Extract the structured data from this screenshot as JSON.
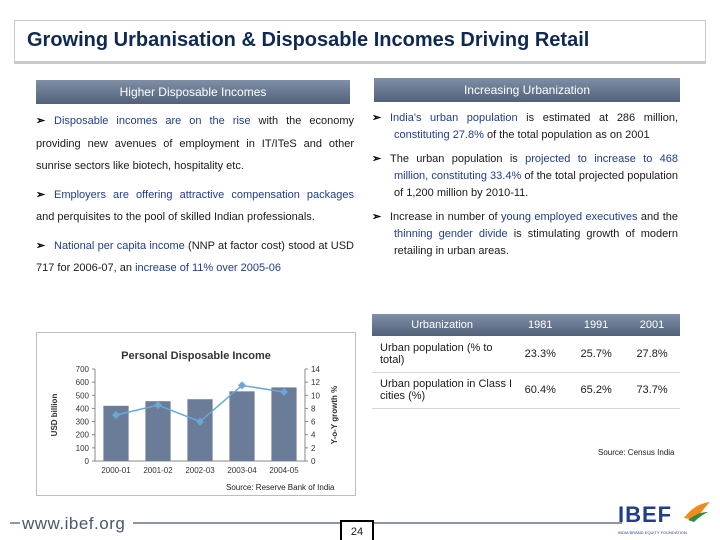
{
  "title": "Growing Urbanisation & Disposable Incomes Driving Retail",
  "left": {
    "header": "Higher Disposable Incomes",
    "bullets": [
      {
        "hl": "Disposable incomes are on the rise",
        "rest": " with the economy providing new avenues of employment in IT/ITeS and other sunrise sectors like biotech, hospitality etc."
      },
      {
        "hl": "Employers are offering attractive compensation packages",
        "rest": " and perquisites to the pool of skilled Indian professionals."
      },
      {
        "hl": "National per capita income",
        "mid": " (NNP at factor cost) stood at USD 717 for 2006-07, an ",
        "hl2": "increase of 11% over 2005-06",
        "rest": ""
      }
    ]
  },
  "right": {
    "header": "Increasing Urbanization",
    "bullets": [
      {
        "hl": "India's urban population",
        "mid": " is estimated at 286 million, ",
        "hl2": "constituting 27.8%",
        "rest": " of the total population as on 2001"
      },
      {
        "pre": "The urban population is ",
        "hl": "projected to increase to 468 million, constituting 33.4%",
        "rest": " of the total projected population of 1,200 million by 2010-11."
      },
      {
        "pre": "Increase in number of ",
        "hl": "young employed executives",
        "mid": " and the ",
        "hl2": "thinning gender divide",
        "rest": " is stimulating growth of modern retailing in urban areas."
      }
    ]
  },
  "chart_data": {
    "type": "bar",
    "title": "Personal Disposable Income",
    "categories": [
      "2000-01",
      "2001-02",
      "2002-03",
      "2003-04",
      "2004-05"
    ],
    "series": [
      {
        "name": "USD billion",
        "type": "bar",
        "values": [
          420,
          455,
          470,
          530,
          560
        ]
      },
      {
        "name": "Y-o-Y growth %",
        "type": "line",
        "values": [
          7,
          8.5,
          6,
          11.5,
          10.5
        ]
      }
    ],
    "ylabel": "USD billion",
    "y2label": "Y-o-Y growth %",
    "ylim": [
      0,
      700
    ],
    "y2lim": [
      0,
      14
    ],
    "yticks": [
      "700",
      "600",
      "500",
      "400",
      "300",
      "200",
      "100",
      "0"
    ],
    "y2ticks": [
      "14",
      "12",
      "10",
      "8",
      "6",
      "4",
      "2",
      "0"
    ],
    "bar_color": "#6b7c98",
    "line_color": "#6aa7d8",
    "source": "Source: Reserve Bank of India"
  },
  "table": {
    "headers": [
      "Urbanization",
      "1981",
      "1991",
      "2001"
    ],
    "rows": [
      [
        "Urban population (% to total)",
        "23.3%",
        "25.7%",
        "27.8%"
      ],
      [
        "Urban population in Class I cities (%)",
        "60.4%",
        "65.2%",
        "73.7%"
      ]
    ],
    "source": "Source: Census India"
  },
  "footer": {
    "url": "www.ibef.org",
    "page": "24",
    "logo": "IBEF",
    "logo_sub": "INDIA BRAND EQUITY FOUNDATION"
  }
}
